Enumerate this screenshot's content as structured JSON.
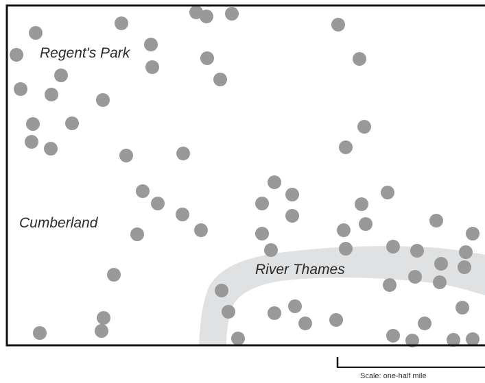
{
  "map": {
    "labels": {
      "regents_park": "Regent's Park",
      "cumberland": "Cumberland",
      "river_thames": "River Thames"
    },
    "scale_text": "Scale: one-half mile",
    "colors": {
      "border": "#111111",
      "dot": "#999999",
      "river": "#dfe1e3",
      "label": "#2a2a2a",
      "background": "#ffffff"
    }
  }
}
